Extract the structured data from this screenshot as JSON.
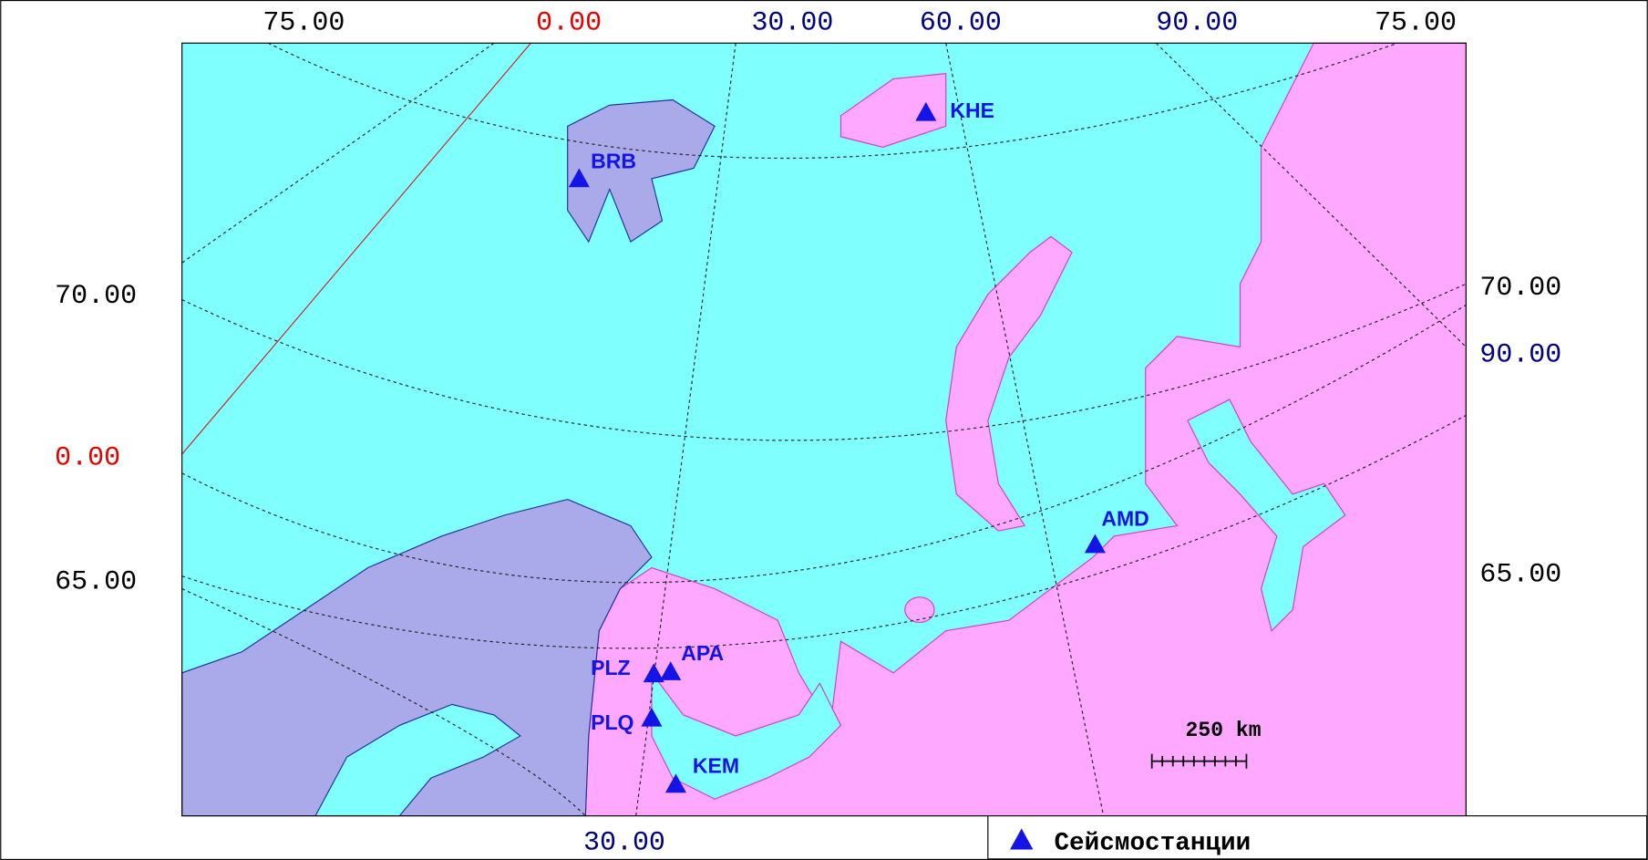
{
  "top_labels": [
    "75.00",
    "0.00",
    "30.00",
    "60.00",
    "90.00",
    "75.00"
  ],
  "left_labels": [
    "70.00",
    "0.00",
    "65.00"
  ],
  "right_labels": [
    "70.00",
    "90.00",
    "65.00"
  ],
  "bottom_labels": [
    "30.00"
  ],
  "stations": [
    "BRB",
    "KHE",
    "AMD",
    "APA",
    "PLZ",
    "PLQ",
    "KEM"
  ],
  "scale_bar": "250 km",
  "legend": "Сейсмостанции"
}
